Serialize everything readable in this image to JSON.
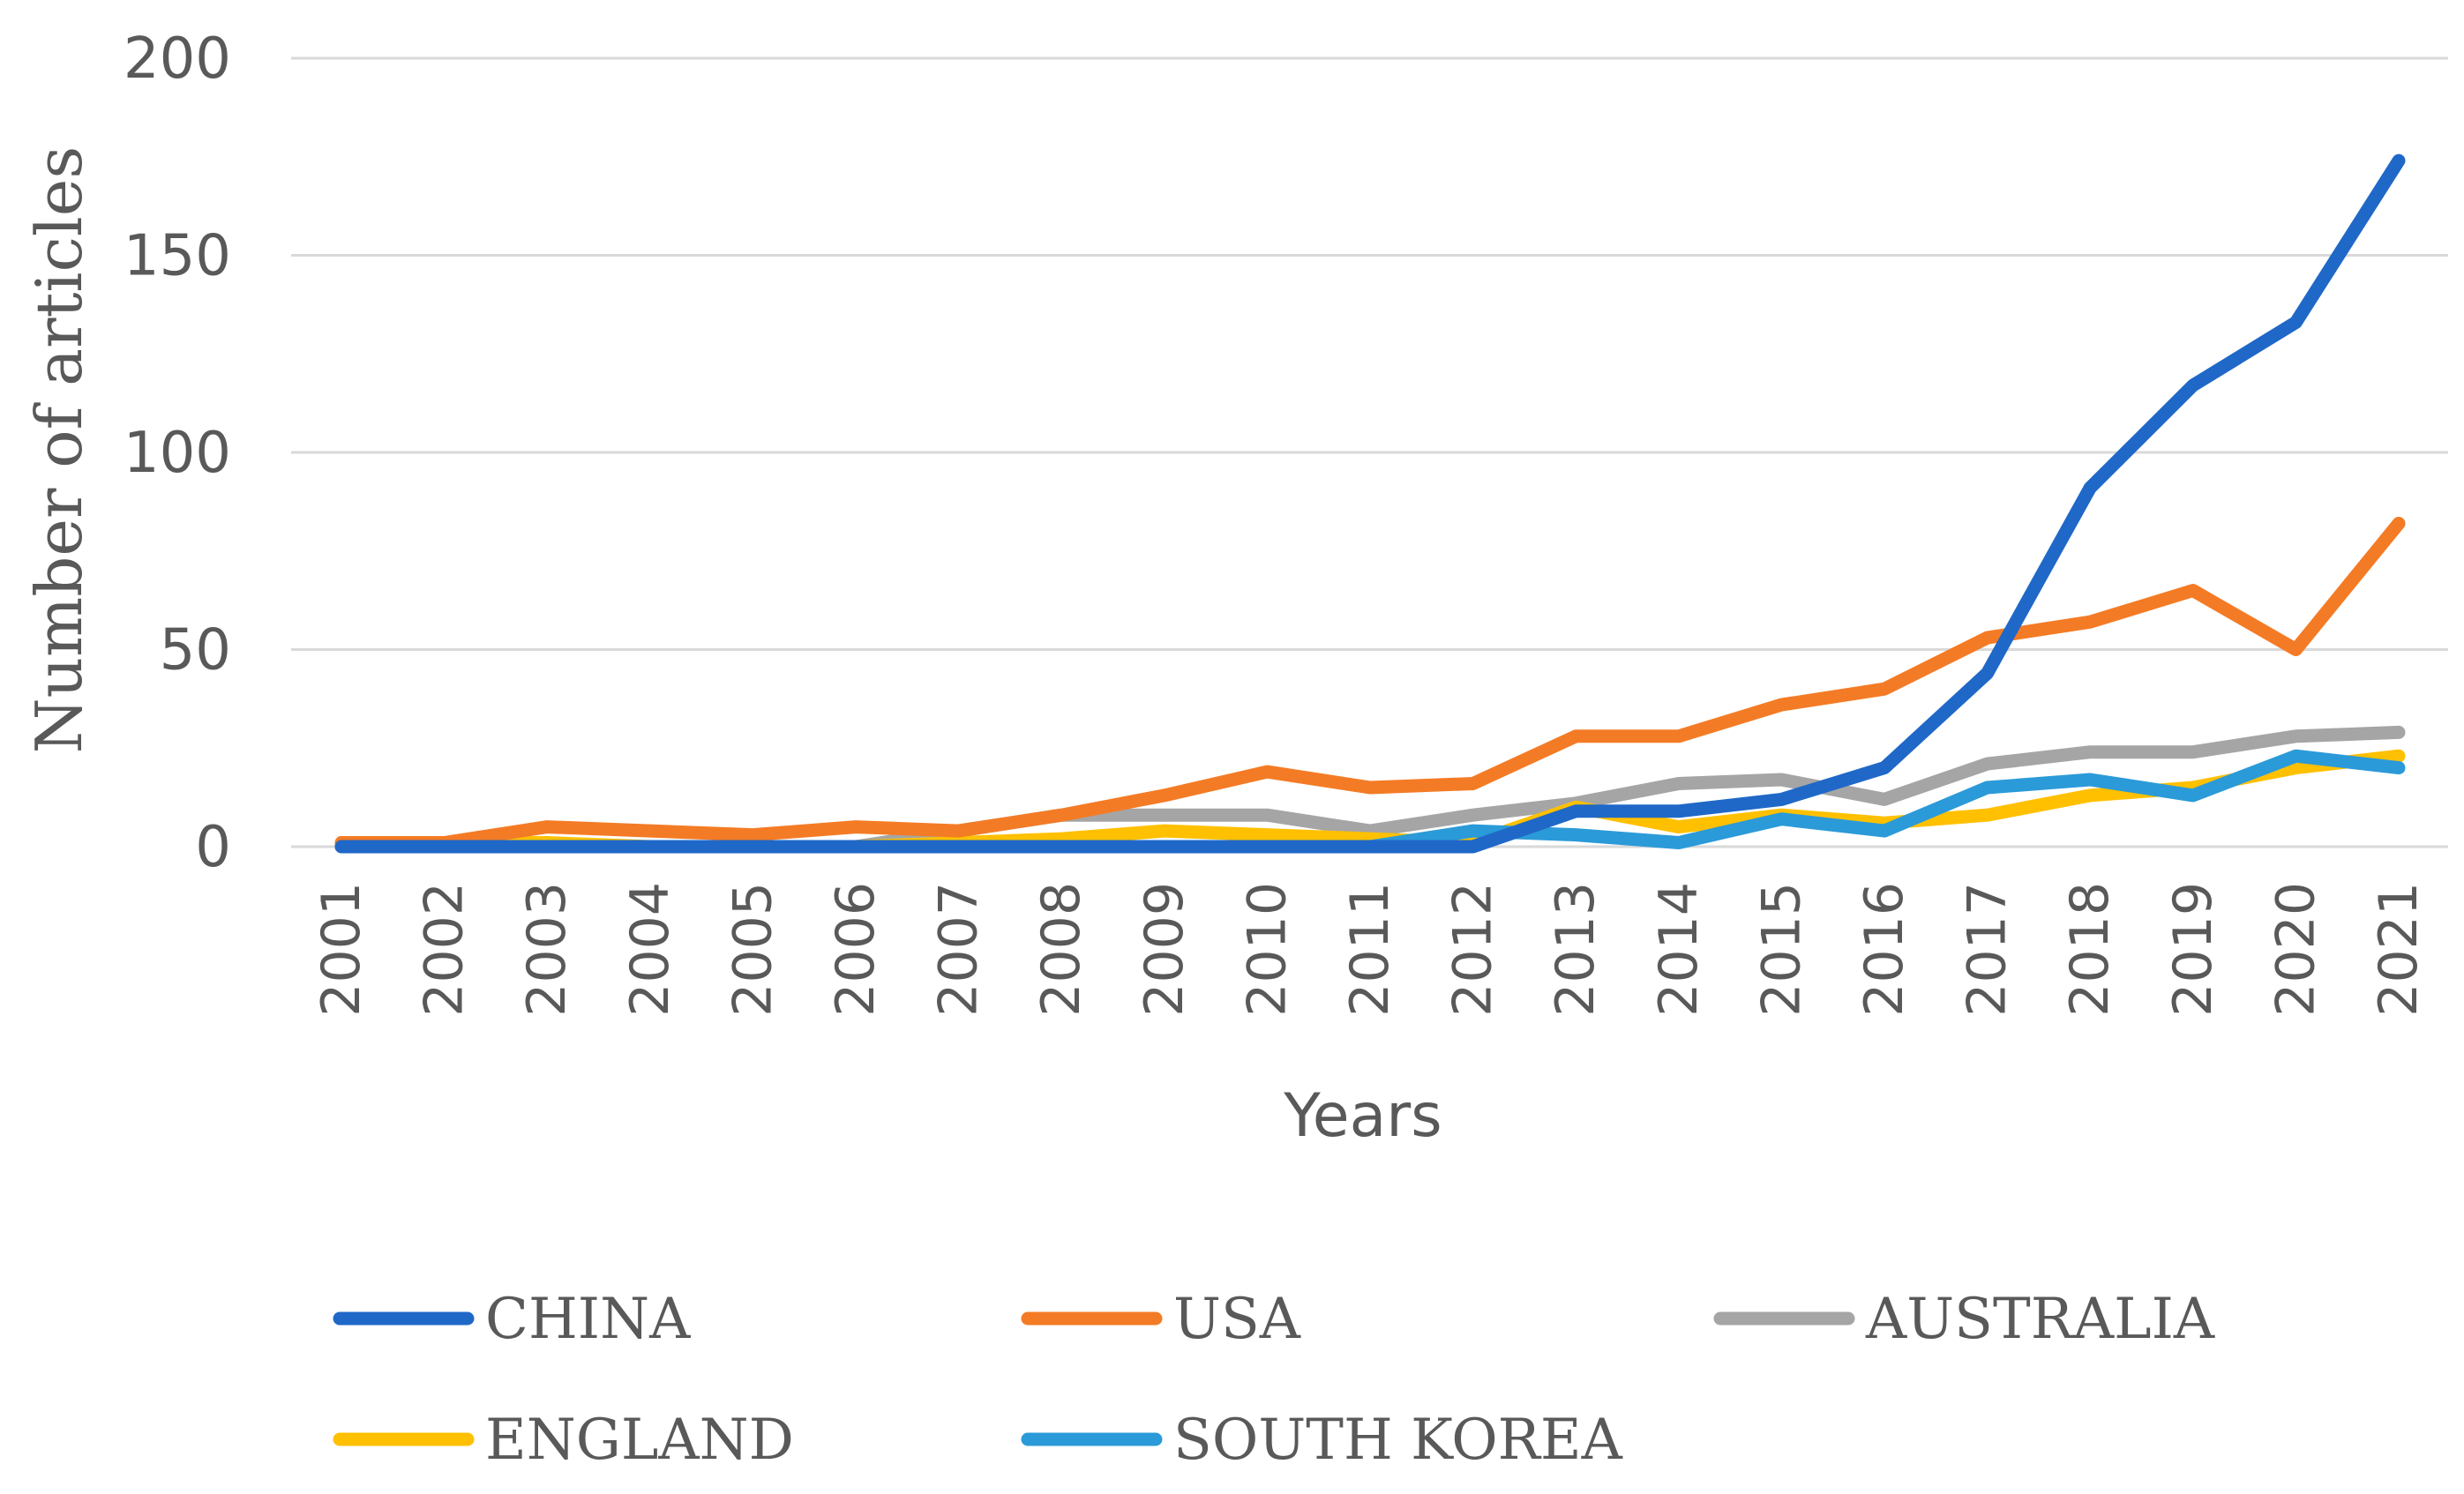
{
  "chart_data": {
    "type": "line",
    "title": "",
    "xlabel": "Years",
    "ylabel": "Number of articles",
    "ylim": [
      0,
      200
    ],
    "yticks": [
      "0",
      "50",
      "100",
      "150",
      "200"
    ],
    "grid": true,
    "legend_position": "bottom",
    "categories": [
      "2001",
      "2002",
      "2003",
      "2004",
      "2005",
      "2006",
      "2007",
      "2008",
      "2009",
      "2010",
      "2011",
      "2012",
      "2013",
      "2014",
      "2015",
      "2016",
      "2017",
      "2018",
      "2019",
      "2020",
      "2021"
    ],
    "series": [
      {
        "name": "CHINA",
        "color": "#1f68c8",
        "values": [
          0,
          0,
          0,
          0,
          0,
          0,
          0,
          0,
          0,
          0,
          0,
          0,
          9,
          9,
          12,
          20,
          44,
          91,
          117,
          133,
          174
        ]
      },
      {
        "name": "USA",
        "color": "#f47b25",
        "values": [
          1,
          1,
          5,
          4,
          3,
          5,
          4,
          8,
          13,
          19,
          15,
          16,
          28,
          28,
          36,
          40,
          53,
          57,
          65,
          50,
          82
        ]
      },
      {
        "name": "AUSTRALIA",
        "color": "#a5a5a5",
        "values": [
          0,
          0,
          0,
          0,
          0,
          0,
          4,
          8,
          8,
          8,
          4,
          8,
          11,
          16,
          17,
          12,
          21,
          24,
          24,
          28,
          29
        ]
      },
      {
        "name": "ENGLAND",
        "color": "#ffc000",
        "values": [
          1,
          1,
          1,
          0,
          0,
          0,
          1,
          2,
          4,
          3,
          2,
          1,
          10,
          5,
          8,
          6,
          8,
          13,
          15,
          20,
          23
        ]
      },
      {
        "name": "SOUTH KOREA",
        "color": "#2b9ad8",
        "values": [
          0,
          0,
          0,
          0,
          0,
          0,
          0,
          0,
          0,
          0,
          0,
          4,
          3,
          1,
          7,
          4,
          15,
          17,
          13,
          23,
          20
        ]
      }
    ]
  }
}
